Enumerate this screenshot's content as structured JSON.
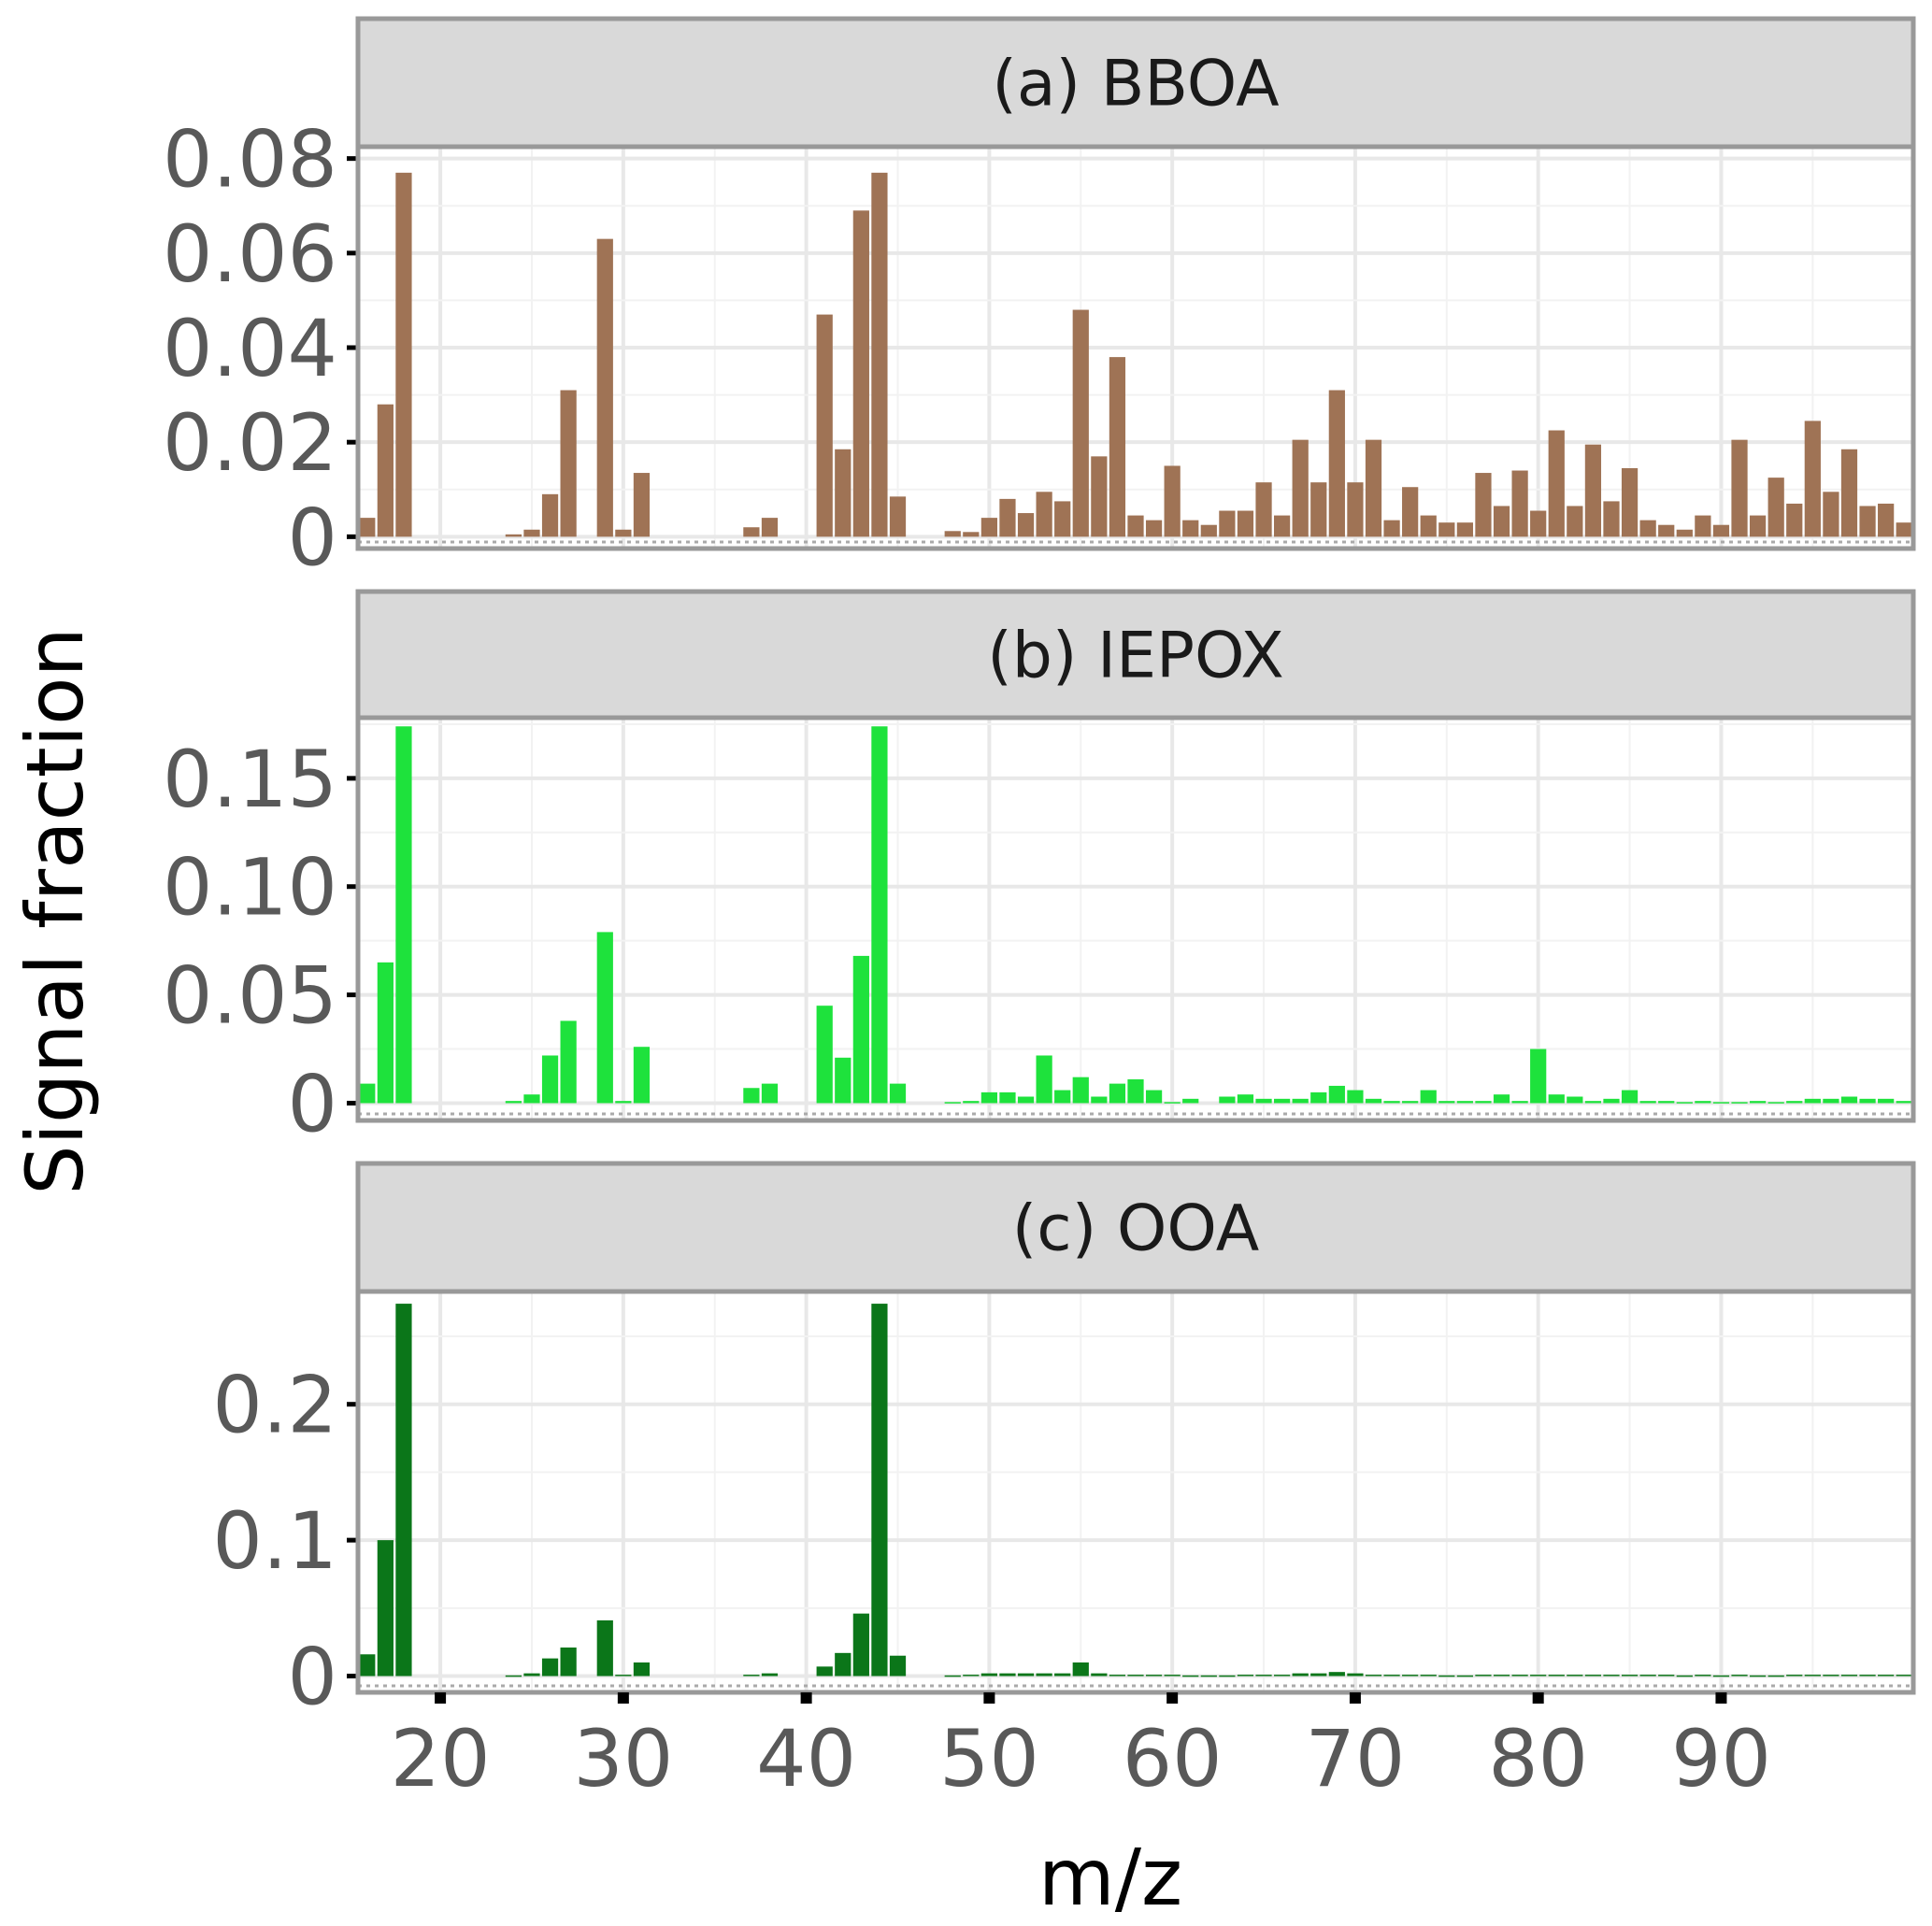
{
  "chart_data": {
    "type": "bar",
    "xlabel": "m/z",
    "ylabel": "Signal fraction",
    "xlim": [
      15.5,
      100.5
    ],
    "x_ticks": [
      20,
      30,
      40,
      50,
      60,
      70,
      80,
      90
    ],
    "x_start": 16,
    "grid": true,
    "panels": [
      {
        "title": "(a) BBOA",
        "color": "#9f7355",
        "ylim": [
          -0.0025,
          0.0825
        ],
        "y_ticks": [
          0,
          0.02,
          0.04,
          0.06,
          0.08
        ],
        "y_tick_labels": [
          "0",
          "0.02",
          "0.04",
          "0.06",
          "0.08"
        ],
        "values": [
          0.004,
          0.028,
          0.077,
          0,
          0,
          0,
          0,
          0,
          0.0005,
          0.0015,
          0.009,
          0.031,
          0,
          0.063,
          0.0015,
          0.0135,
          0,
          0,
          0,
          0,
          0,
          0.002,
          0.004,
          0,
          0,
          0.047,
          0.0185,
          0.069,
          0.077,
          0.0085,
          0,
          0,
          0.0012,
          0.001,
          0.004,
          0.008,
          0.005,
          0.0095,
          0.0075,
          0.048,
          0.017,
          0.038,
          0.0045,
          0.0035,
          0.015,
          0.0035,
          0.0025,
          0.0055,
          0.0055,
          0.0115,
          0.0045,
          0.0205,
          0.0115,
          0.031,
          0.0115,
          0.0205,
          0.0035,
          0.0105,
          0.0045,
          0.003,
          0.003,
          0.0135,
          0.0065,
          0.014,
          0.0055,
          0.0225,
          0.0065,
          0.0195,
          0.0075,
          0.0145,
          0.0035,
          0.0025,
          0.0015,
          0.0045,
          0.0025,
          0.0205,
          0.0045,
          0.0125,
          0.007,
          0.0245,
          0.0095,
          0.0185,
          0.0065,
          0.007,
          0.003
        ]
      },
      {
        "title": "(b) IEPOX",
        "color": "#1ee23c",
        "ylim": [
          -0.008,
          0.178
        ],
        "y_ticks": [
          0,
          0.05,
          0.1,
          0.15
        ],
        "y_tick_labels": [
          "0",
          "0.05",
          "0.10",
          "0.15"
        ],
        "values": [
          0.009,
          0.065,
          0.174,
          0,
          0,
          0,
          0,
          0,
          0.001,
          0.004,
          0.022,
          0.038,
          0,
          0.079,
          0.001,
          0.026,
          0,
          0,
          0,
          0,
          0,
          0.007,
          0.009,
          0,
          0,
          0.045,
          0.021,
          0.068,
          0.174,
          0.009,
          0,
          0,
          0.0005,
          0.001,
          0.005,
          0.005,
          0.003,
          0.022,
          0.006,
          0.012,
          0.003,
          0.009,
          0.011,
          0.006,
          0.0005,
          0.002,
          0,
          0.003,
          0.004,
          0.002,
          0.002,
          0.002,
          0.005,
          0.008,
          0.006,
          0.002,
          0.001,
          0.001,
          0.006,
          0.001,
          0.001,
          0.001,
          0.004,
          0.001,
          0.025,
          0.004,
          0.003,
          0.001,
          0.002,
          0.006,
          0.001,
          0.001,
          0.0005,
          0.001,
          0.0005,
          0.0005,
          0.001,
          0.0005,
          0.001,
          0.002,
          0.002,
          0.003,
          0.002,
          0.002,
          0.001
        ]
      },
      {
        "title": "(c) OOA",
        "color": "#0b7619",
        "ylim": [
          -0.012,
          0.283
        ],
        "y_ticks": [
          0,
          0.1,
          0.2
        ],
        "y_tick_labels": [
          "0",
          "0.1",
          "0.2"
        ],
        "values": [
          0.016,
          0.1,
          0.274,
          0,
          0,
          0,
          0,
          0,
          0.0005,
          0.002,
          0.013,
          0.021,
          0,
          0.041,
          0.001,
          0.01,
          0,
          0,
          0,
          0,
          0,
          0.001,
          0.002,
          0,
          0,
          0.007,
          0.017,
          0.046,
          0.274,
          0.015,
          0,
          0,
          0.0005,
          0.001,
          0.002,
          0.002,
          0.002,
          0.002,
          0.002,
          0.01,
          0.002,
          0.001,
          0.001,
          0.001,
          0.001,
          0.0005,
          0.0005,
          0.0005,
          0.001,
          0.001,
          0.001,
          0.002,
          0.002,
          0.003,
          0.002,
          0.001,
          0.001,
          0.001,
          0.001,
          0.0005,
          0.0005,
          0.001,
          0.001,
          0.001,
          0.001,
          0.001,
          0.001,
          0.001,
          0.001,
          0.001,
          0.001,
          0.001,
          0.0005,
          0.001,
          0.0005,
          0.001,
          0.0005,
          0.0005,
          0.001,
          0.001,
          0.001,
          0.001,
          0.001,
          0.001,
          0.001
        ]
      }
    ]
  }
}
